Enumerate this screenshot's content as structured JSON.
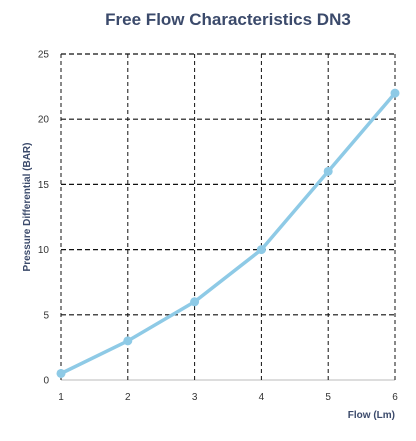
{
  "chart_data": {
    "type": "line",
    "title": "Free Flow Characteristics DN3",
    "xlabel": "Flow (Lm)",
    "ylabel": "Pressure Differential (BAR)",
    "x": [
      1,
      2,
      3,
      4,
      5,
      6
    ],
    "series": [
      {
        "values": [
          0.5,
          3,
          6,
          10,
          16,
          22
        ]
      }
    ],
    "xlim": [
      1,
      6
    ],
    "ylim": [
      0,
      25
    ],
    "xticks": [
      "1",
      "2",
      "3",
      "4",
      "5",
      "6"
    ],
    "yticks": [
      "0",
      "5",
      "10",
      "15",
      "20",
      "25"
    ],
    "grid": true,
    "legend": "none",
    "colors": {
      "line": "#8ecae6",
      "grid": "#111111",
      "title": "#3b4a6b",
      "axis_label": "#3b4a6b"
    }
  }
}
